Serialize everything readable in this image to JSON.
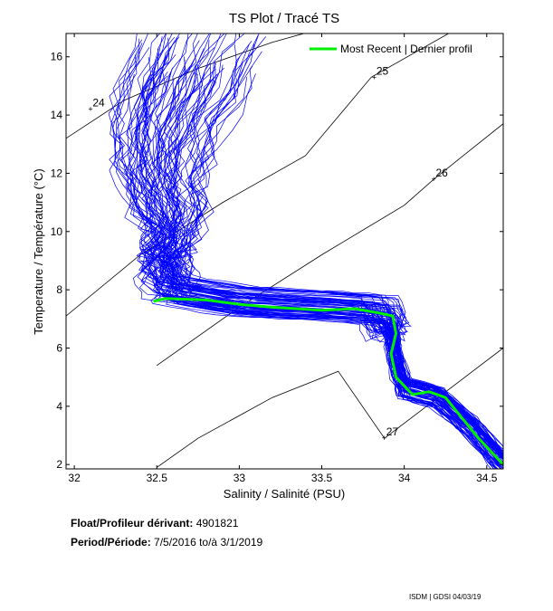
{
  "info": {
    "float_label": "Float/Profileur dérivant:",
    "float_id": "4901821",
    "period_label": "Period/Période:",
    "period_start": "7/5/2016",
    "period_sep": "to/à",
    "period_end": "3/1/2019"
  },
  "footer": "ISDM | GDSI 04/03/19",
  "chart_data": {
    "type": "line",
    "title": "TS Plot / Tracé TS",
    "xlabel": "Salinity / Salinité (PSU)",
    "ylabel": "Temperature / Température (°C)",
    "xlim": [
      31.95,
      34.6
    ],
    "ylim": [
      1.85,
      16.8
    ],
    "xticks": [
      32,
      32.5,
      33,
      33.5,
      34,
      34.5
    ],
    "xtick_labels": [
      "32",
      "32.5",
      "33",
      "33.5",
      "34",
      "34.5"
    ],
    "yticks": [
      2,
      4,
      6,
      8,
      10,
      12,
      14,
      16
    ],
    "ytick_labels": [
      "2",
      "4",
      "6",
      "8",
      "10",
      "12",
      "14",
      "16"
    ],
    "legend": {
      "label": "Most Recent | Dernier profil",
      "position": "top-right"
    },
    "colors": {
      "profiles": "#0000ff",
      "recent": "#00ee00",
      "isopycnal": "#000000",
      "axis": "#000000"
    },
    "isopycnals": [
      {
        "label": "24",
        "label_at": [
          32.1,
          14.2
        ],
        "points": [
          [
            31.95,
            13.2
          ],
          [
            32.3,
            14.5
          ],
          [
            32.75,
            15.6
          ],
          [
            33.2,
            16.5
          ],
          [
            33.9,
            17.6
          ]
        ]
      },
      {
        "label": "25",
        "label_at": [
          33.82,
          15.3
        ],
        "points": [
          [
            31.95,
            7.1
          ],
          [
            32.4,
            9.2
          ],
          [
            32.9,
            11.0
          ],
          [
            33.4,
            12.6
          ],
          [
            33.8,
            15.3
          ],
          [
            34.3,
            16.9
          ]
        ]
      },
      {
        "label": "26",
        "label_at": [
          34.18,
          11.8
        ],
        "points": [
          [
            32.5,
            5.4
          ],
          [
            33.0,
            7.4
          ],
          [
            33.5,
            9.2
          ],
          [
            34.0,
            10.9
          ],
          [
            34.18,
            11.8
          ],
          [
            34.6,
            13.7
          ]
        ]
      },
      {
        "label": "27",
        "label_at": [
          33.88,
          2.9
        ],
        "points": [
          [
            32.5,
            1.9
          ],
          [
            32.75,
            2.9
          ],
          [
            33.2,
            4.3
          ],
          [
            33.6,
            5.2
          ],
          [
            33.88,
            2.9
          ],
          [
            34.6,
            6.0
          ]
        ]
      }
    ],
    "profile_count": 80,
    "profile_template": [
      [
        32.75,
        15.8
      ],
      [
        32.55,
        13.2
      ],
      [
        32.52,
        11.5
      ],
      [
        32.6,
        10.0
      ],
      [
        32.55,
        8.8
      ],
      [
        32.6,
        8.0
      ],
      [
        33.0,
        7.6
      ],
      [
        33.5,
        7.45
      ],
      [
        33.85,
        7.3
      ],
      [
        33.92,
        6.5
      ],
      [
        33.95,
        5.5
      ],
      [
        34.0,
        4.6
      ],
      [
        34.2,
        4.3
      ],
      [
        34.4,
        3.3
      ],
      [
        34.6,
        2.0
      ]
    ],
    "recent_profile": [
      [
        32.48,
        7.6
      ],
      [
        32.55,
        7.7
      ],
      [
        32.8,
        7.65
      ],
      [
        33.0,
        7.5
      ],
      [
        33.2,
        7.4
      ],
      [
        33.5,
        7.3
      ],
      [
        33.7,
        7.35
      ],
      [
        33.85,
        7.2
      ],
      [
        33.93,
        7.1
      ],
      [
        33.95,
        6.5
      ],
      [
        33.92,
        5.8
      ],
      [
        33.95,
        5.0
      ],
      [
        34.0,
        4.7
      ],
      [
        34.05,
        4.4
      ],
      [
        34.15,
        4.5
      ],
      [
        34.25,
        4.3
      ],
      [
        34.35,
        3.6
      ],
      [
        34.45,
        2.9
      ],
      [
        34.55,
        2.3
      ],
      [
        34.6,
        2.0
      ]
    ]
  }
}
